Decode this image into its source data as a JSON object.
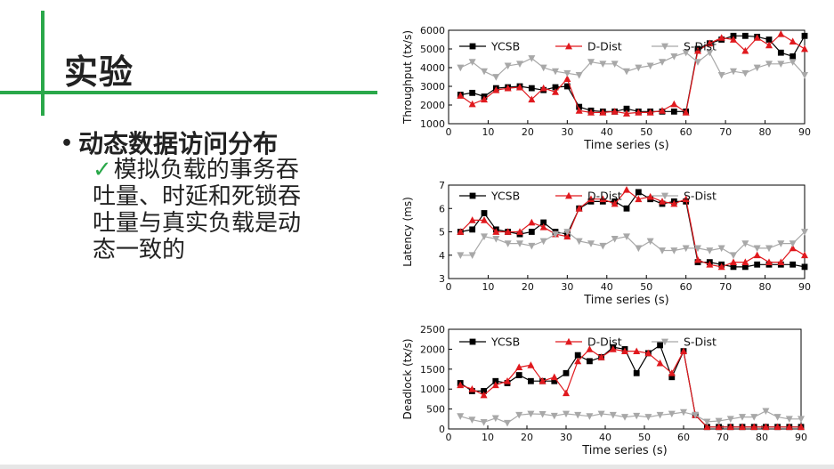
{
  "slide": {
    "title": "实验",
    "bullet": "动态数据访问分布",
    "check_glyph": "✓",
    "sub_text": "模拟负载的事务吞吐量、时延和死锁吞吐量与真实负载是动态一致的"
  },
  "colors": {
    "accent": "#2aa84a",
    "ycsb": "#000000",
    "ddist": "#e0191e",
    "sdist": "#a8a8a8"
  },
  "chart_data": [
    {
      "type": "line",
      "xlabel": "Time series (s)",
      "ylabel": "Throughput (tx/s)",
      "xlim": [
        0,
        90
      ],
      "ylim": [
        1000,
        6000
      ],
      "xticks": [
        0,
        10,
        20,
        30,
        40,
        50,
        60,
        70,
        80,
        90
      ],
      "yticks": [
        1000,
        2000,
        3000,
        4000,
        5000,
        6000
      ],
      "legend": "top-left",
      "x": [
        3,
        6,
        9,
        12,
        15,
        18,
        21,
        24,
        27,
        30,
        33,
        36,
        39,
        42,
        45,
        48,
        51,
        54,
        57,
        60,
        63,
        66,
        69,
        72,
        75,
        78,
        81,
        84,
        87,
        90
      ],
      "series": [
        {
          "name": "YCSB",
          "marker": "square",
          "values": [
            2550,
            2650,
            2450,
            2900,
            2950,
            3000,
            2900,
            2800,
            2950,
            3000,
            1900,
            1700,
            1650,
            1650,
            1800,
            1650,
            1650,
            1650,
            1650,
            1650,
            5000,
            5300,
            5500,
            5700,
            5700,
            5650,
            5500,
            4800,
            4600,
            5700
          ]
        },
        {
          "name": "D-Dist",
          "marker": "triangle",
          "values": [
            2500,
            2050,
            2300,
            2800,
            2900,
            2950,
            2300,
            2900,
            2700,
            3400,
            1700,
            1600,
            1600,
            1650,
            1550,
            1600,
            1600,
            1700,
            2050,
            1600,
            4900,
            5300,
            5600,
            5500,
            4900,
            5600,
            5200,
            5800,
            5400,
            5000
          ]
        },
        {
          "name": "S-Dist",
          "marker": "triangle-down",
          "values": [
            4000,
            4300,
            3800,
            3500,
            4100,
            4200,
            4500,
            4000,
            3800,
            3700,
            3600,
            4300,
            4200,
            4200,
            3800,
            4000,
            4100,
            4300,
            4600,
            4800,
            4300,
            4800,
            3600,
            3800,
            3700,
            4000,
            4200,
            4200,
            4300,
            3600
          ]
        }
      ]
    },
    {
      "type": "line",
      "xlabel": "Time series (s)",
      "ylabel": "Latency (ms)",
      "xlim": [
        0,
        90
      ],
      "ylim": [
        3,
        7
      ],
      "xticks": [
        0,
        10,
        20,
        30,
        40,
        50,
        60,
        70,
        80,
        90
      ],
      "yticks": [
        3,
        4,
        5,
        6,
        7
      ],
      "legend": "top-left",
      "x": [
        3,
        6,
        9,
        12,
        15,
        18,
        21,
        24,
        27,
        30,
        33,
        36,
        39,
        42,
        45,
        48,
        51,
        54,
        57,
        60,
        63,
        66,
        69,
        72,
        75,
        78,
        81,
        84,
        87,
        90
      ],
      "series": [
        {
          "name": "YCSB",
          "marker": "square",
          "values": [
            5.0,
            5.1,
            5.8,
            5.1,
            5.0,
            4.9,
            5.0,
            5.4,
            5.0,
            4.9,
            6.0,
            6.3,
            6.3,
            6.3,
            6.0,
            6.7,
            6.4,
            6.2,
            6.3,
            6.3,
            3.7,
            3.7,
            3.6,
            3.5,
            3.5,
            3.6,
            3.6,
            3.6,
            3.6,
            3.5
          ]
        },
        {
          "name": "D-Dist",
          "marker": "triangle",
          "values": [
            5.0,
            5.5,
            5.5,
            5.0,
            5.0,
            5.0,
            5.4,
            5.2,
            4.9,
            4.8,
            6.0,
            6.4,
            6.4,
            6.2,
            6.8,
            6.4,
            6.5,
            6.3,
            6.2,
            6.4,
            3.8,
            3.6,
            3.5,
            3.7,
            3.7,
            4.0,
            3.7,
            3.7,
            4.3,
            4.0
          ]
        },
        {
          "name": "S-Dist",
          "marker": "triangle-down",
          "values": [
            4.0,
            4.0,
            4.8,
            4.7,
            4.5,
            4.5,
            4.4,
            4.6,
            4.9,
            5.0,
            4.6,
            4.5,
            4.4,
            4.7,
            4.8,
            4.3,
            4.6,
            4.2,
            4.2,
            4.3,
            4.3,
            4.2,
            4.3,
            4.0,
            4.5,
            4.3,
            4.3,
            4.5,
            4.5,
            5.0
          ]
        }
      ]
    },
    {
      "type": "line",
      "xlabel": "Time series (s)",
      "ylabel": "Deadlock (tx/s)",
      "xlim": [
        0,
        90
      ],
      "ylim": [
        0,
        2500
      ],
      "xticks": [
        0,
        10,
        20,
        30,
        40,
        50,
        60,
        70,
        80,
        90
      ],
      "yticks": [
        0,
        500,
        1000,
        1500,
        2000,
        2500
      ],
      "legend": "top-left",
      "x": [
        3,
        6,
        9,
        12,
        15,
        18,
        21,
        24,
        27,
        30,
        33,
        36,
        39,
        42,
        45,
        48,
        51,
        54,
        57,
        60,
        63,
        66,
        69,
        72,
        75,
        78,
        81,
        84,
        87,
        90
      ],
      "series": [
        {
          "name": "YCSB",
          "marker": "square",
          "values": [
            1150,
            950,
            950,
            1200,
            1150,
            1350,
            1200,
            1200,
            1200,
            1400,
            1850,
            1700,
            1800,
            2050,
            2000,
            1400,
            1900,
            2100,
            1300,
            1950,
            350,
            50,
            50,
            50,
            50,
            50,
            50,
            50,
            50,
            50
          ]
        },
        {
          "name": "D-Dist",
          "marker": "triangle",
          "values": [
            1100,
            1000,
            850,
            1100,
            1200,
            1550,
            1600,
            1200,
            1300,
            900,
            1700,
            2000,
            1800,
            2000,
            1950,
            1950,
            1900,
            1650,
            1400,
            1950,
            350,
            50,
            50,
            50,
            50,
            50,
            50,
            50,
            50,
            50
          ]
        },
        {
          "name": "S-Dist",
          "marker": "triangle-down",
          "values": [
            320,
            230,
            170,
            270,
            150,
            350,
            380,
            370,
            330,
            380,
            350,
            320,
            380,
            350,
            300,
            330,
            300,
            350,
            380,
            420,
            350,
            180,
            200,
            250,
            300,
            300,
            450,
            300,
            250,
            250
          ]
        }
      ]
    }
  ]
}
